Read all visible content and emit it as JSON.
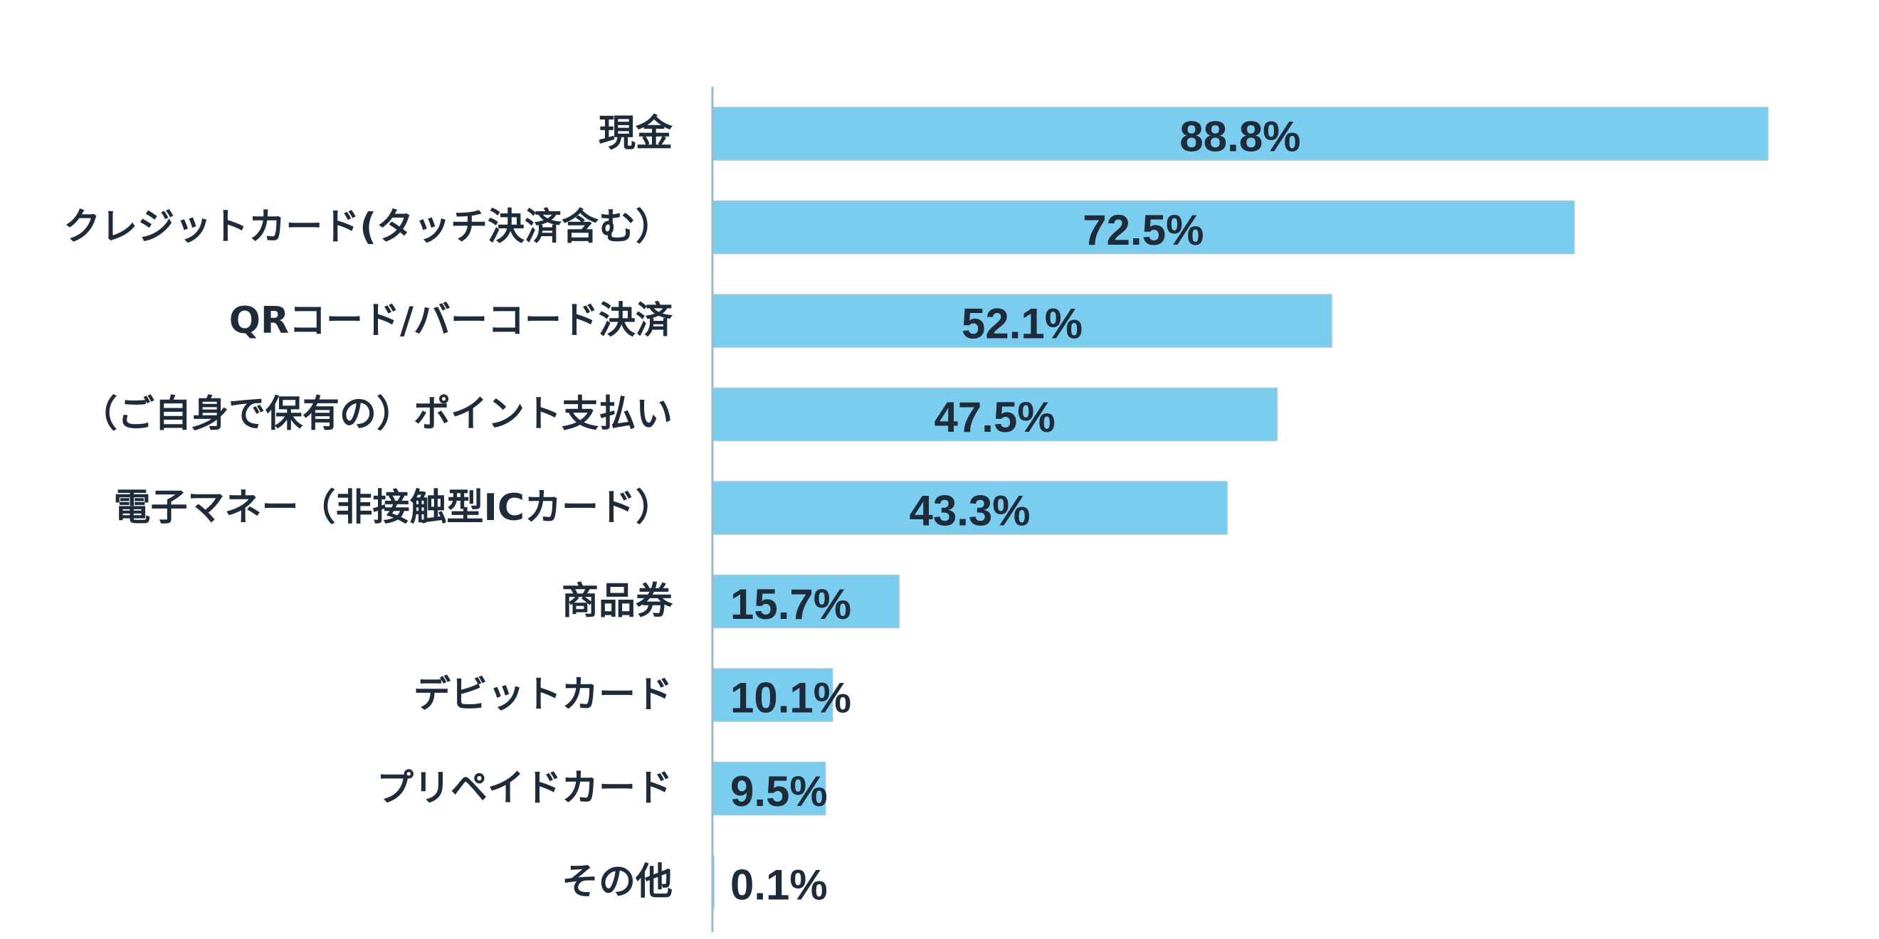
{
  "chart_data": {
    "type": "bar",
    "orientation": "horizontal",
    "categories": [
      "現金",
      "クレジットカード(タッチ決済含む）",
      "QRコード/バーコード決済",
      "（ご自身で保有の）ポイント支払い",
      "電子マネー（非接触型ICカード）",
      "商品券",
      "デビットカード",
      "プリペイドカード",
      "その他"
    ],
    "values": [
      88.8,
      72.5,
      52.1,
      47.5,
      43.3,
      15.7,
      10.1,
      9.5,
      0.1
    ],
    "value_labels": [
      "88.8%",
      "72.5%",
      "52.1%",
      "47.5%",
      "43.3%",
      "15.7%",
      "10.1%",
      "9.5%",
      "0.1%"
    ],
    "xlim": [
      0,
      100
    ],
    "title": "",
    "xlabel": "",
    "ylabel": "",
    "grid": false,
    "legend": "none"
  },
  "colors": {
    "bar_fill": "#7bcdef",
    "bar_stroke": "#a9c6d6",
    "axis": "#9ab9cc",
    "text": "#1d2b3a"
  }
}
